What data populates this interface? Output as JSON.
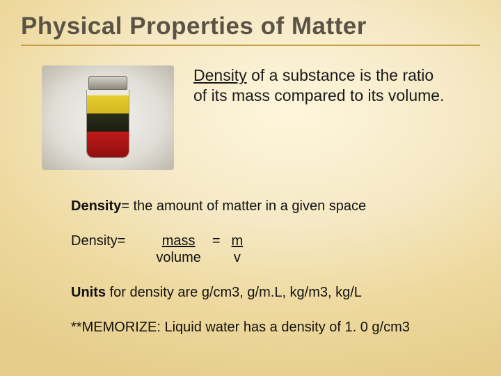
{
  "title": "Physical Properties of Matter",
  "definition": {
    "term": "Density",
    "rest": " of a substance is the ratio of its mass compared to its volume."
  },
  "line1": {
    "label": "Density",
    "text": "= the amount of matter in a given space"
  },
  "formula": {
    "label": "Density=",
    "word_top": "mass",
    "word_bot": "volume",
    "eq": "=",
    "sym_top": "m",
    "sym_bot": "v"
  },
  "units": {
    "label": "Units",
    "text": " for density are g/cm3, g/m.L, kg/m3, kg/L"
  },
  "memorize": "**MEMORIZE: Liquid water has a density of 1. 0 g/cm3",
  "jar_layers": {
    "air": "#eceade",
    "yellow": "#e7d02e",
    "green": "#2a2e1a",
    "red": "#c21a1a"
  },
  "colors": {
    "title": "#5a5346",
    "underline_rule": "#c9a04a",
    "text": "#111111",
    "bg_inner": "#fef6dc",
    "bg_outer": "#e6cd8c"
  },
  "fontsizes": {
    "title": 35,
    "definition": 23,
    "body": 20
  }
}
